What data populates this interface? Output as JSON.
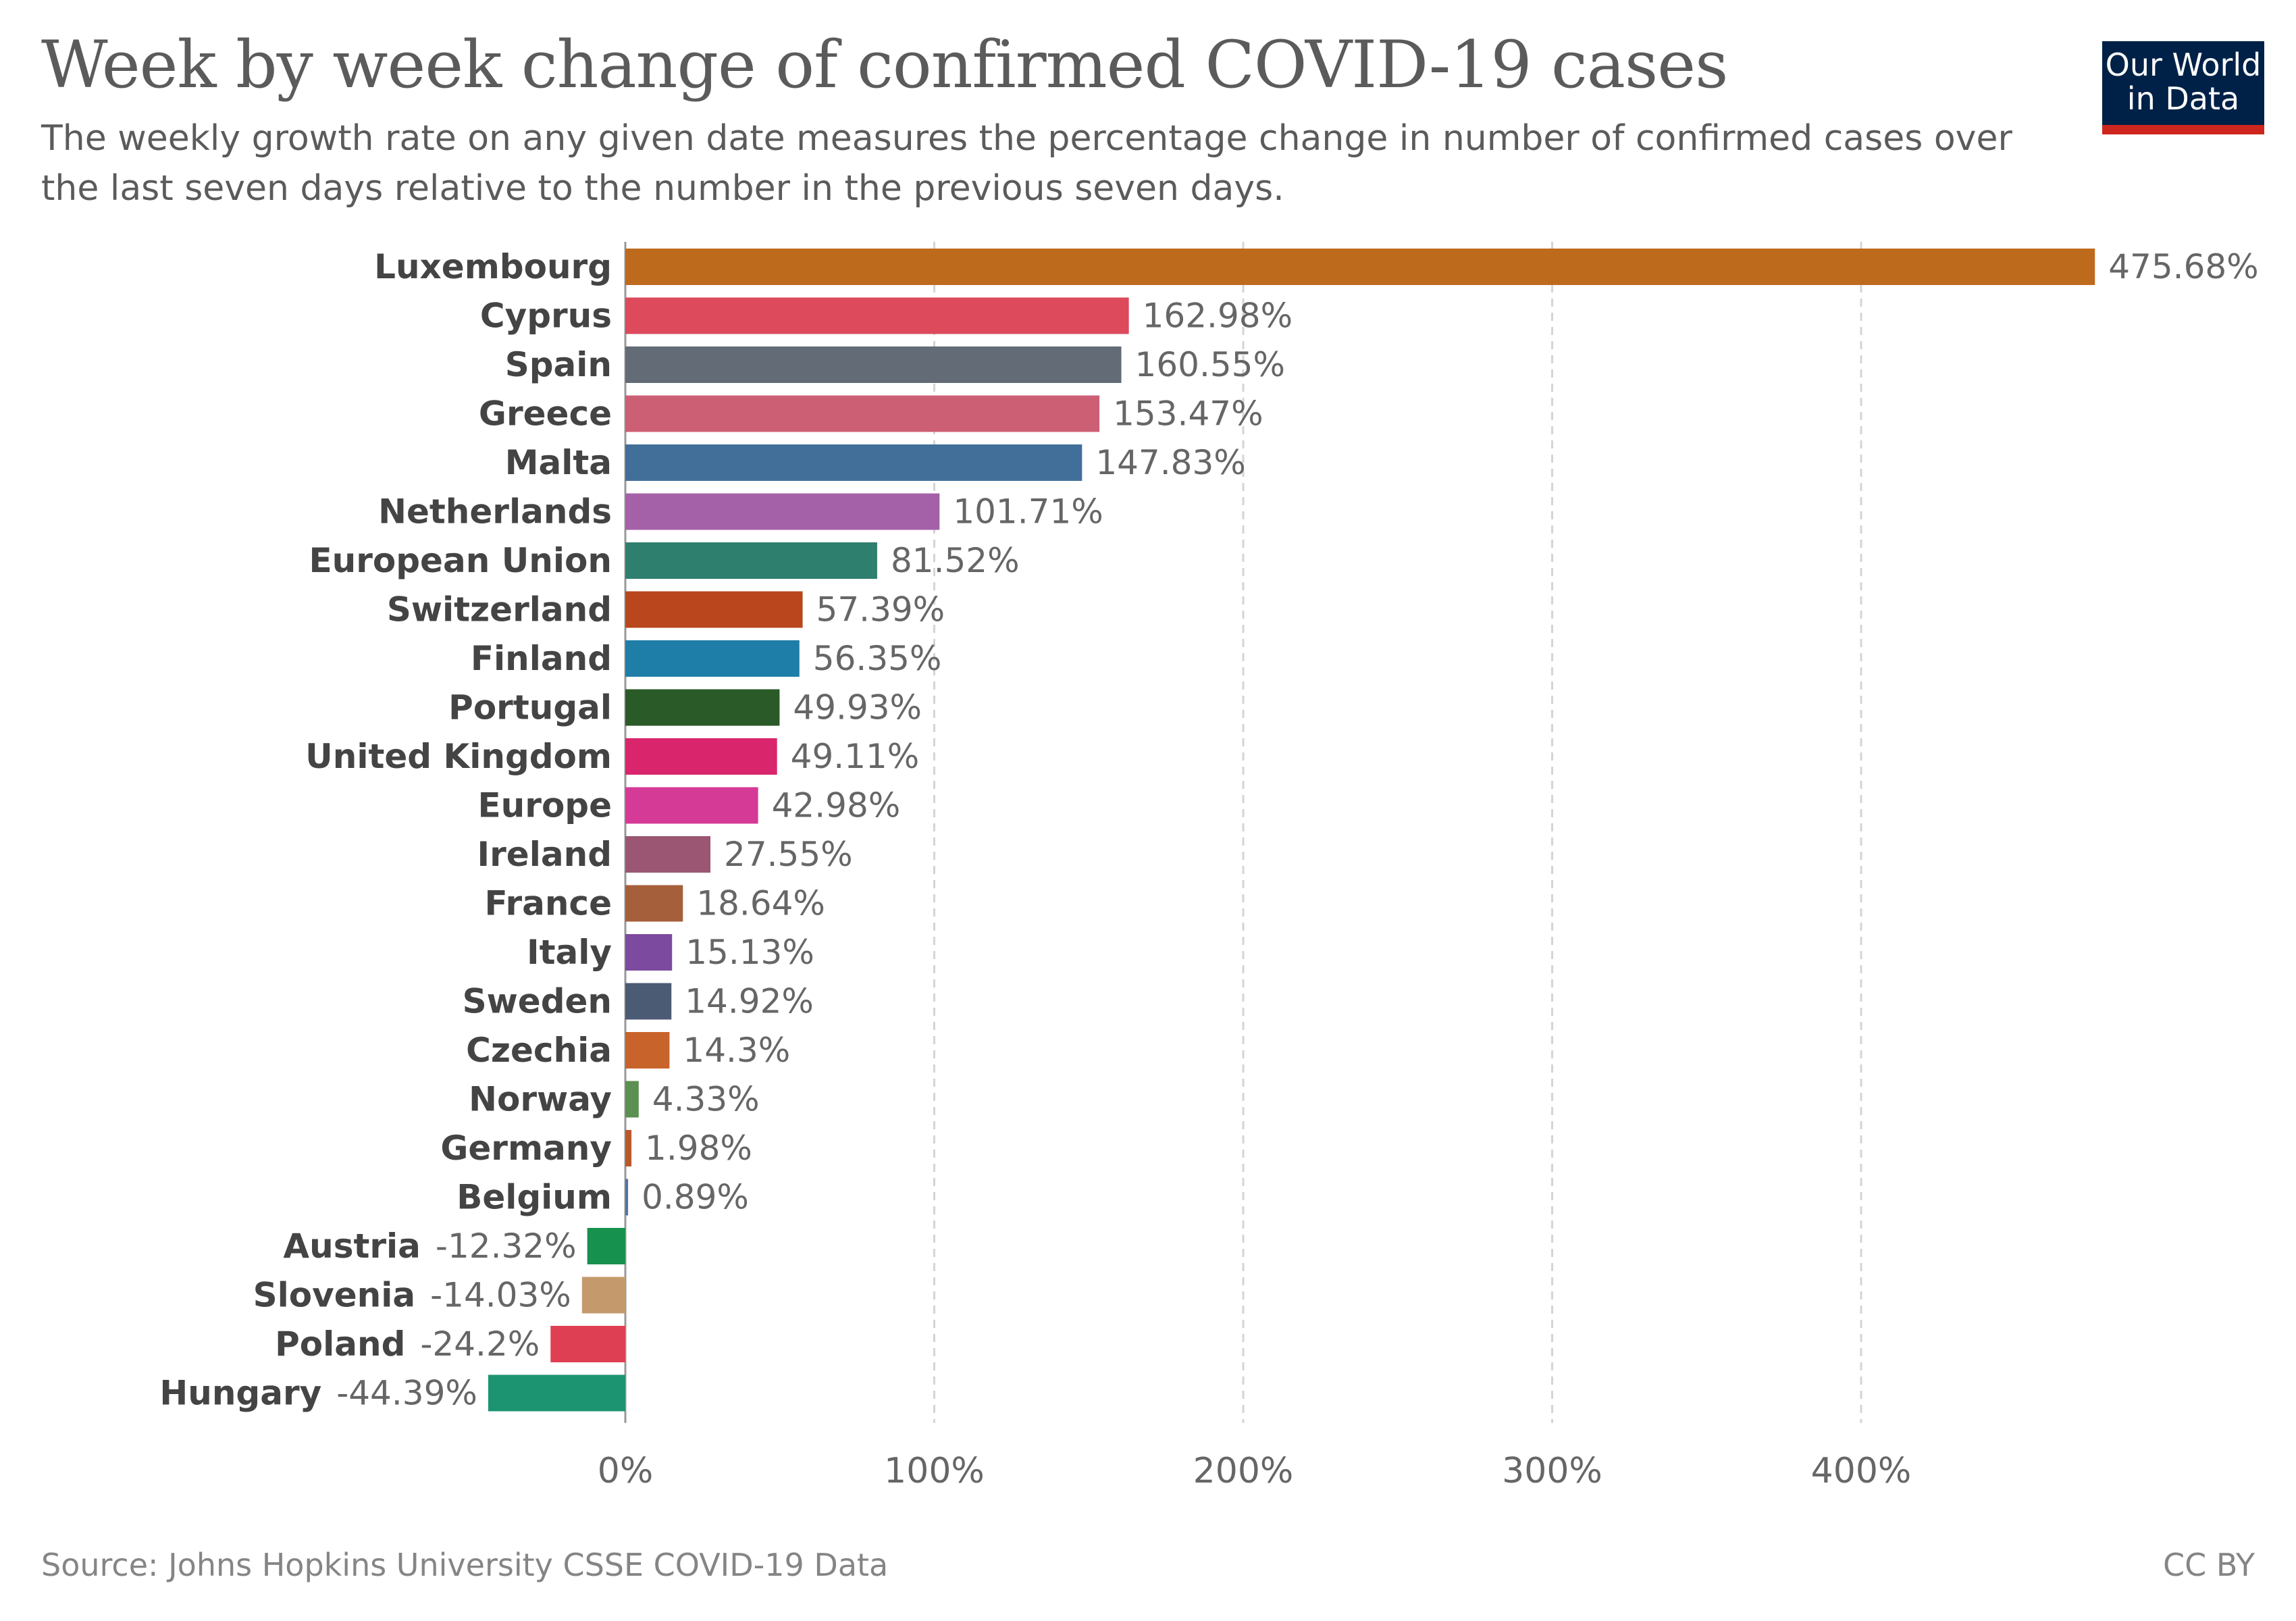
{
  "header": {
    "title": "Week by week change of confirmed COVID-19 cases",
    "subtitle": "The weekly growth rate on any given date measures the percentage change in number of confirmed cases over the last seven days relative to the number in the previous seven days."
  },
  "logo": {
    "line1": "Our World",
    "line2": "in Data",
    "bg_color": "#002147",
    "accent_color": "#ce261e"
  },
  "footer": {
    "source": "Source: Johns Hopkins University CSSE COVID-19 Data",
    "license": "CC BY"
  },
  "chart_data": {
    "type": "bar",
    "orientation": "horizontal",
    "categories": [
      "Luxembourg",
      "Cyprus",
      "Spain",
      "Greece",
      "Malta",
      "Netherlands",
      "European Union",
      "Switzerland",
      "Finland",
      "Portugal",
      "United Kingdom",
      "Europe",
      "Ireland",
      "France",
      "Italy",
      "Sweden",
      "Czechia",
      "Norway",
      "Germany",
      "Belgium",
      "Austria",
      "Slovenia",
      "Poland",
      "Hungary"
    ],
    "values": [
      475.68,
      162.98,
      160.55,
      153.47,
      147.83,
      101.71,
      81.52,
      57.39,
      56.35,
      49.93,
      49.11,
      42.98,
      27.55,
      18.64,
      15.13,
      14.92,
      14.3,
      4.33,
      1.98,
      0.89,
      -12.32,
      -14.03,
      -24.2,
      -44.39
    ],
    "value_labels": [
      "475.68%",
      "162.98%",
      "160.55%",
      "153.47%",
      "147.83%",
      "101.71%",
      "81.52%",
      "57.39%",
      "56.35%",
      "49.93%",
      "49.11%",
      "42.98%",
      "27.55%",
      "18.64%",
      "15.13%",
      "14.92%",
      "14.3%",
      "4.33%",
      "1.98%",
      "0.89%",
      "-12.32%",
      "-14.03%",
      "-24.2%",
      "-44.39%"
    ],
    "colors": [
      "#be6a1d",
      "#dc4a5c",
      "#626b76",
      "#cc5f74",
      "#426f9a",
      "#a561a8",
      "#2f7f6e",
      "#b9461c",
      "#1f7ea8",
      "#2a5a27",
      "#d9256c",
      "#d53a97",
      "#9a5672",
      "#a65f3b",
      "#7c4a9f",
      "#4c5b74",
      "#c8632b",
      "#5c8f52",
      "#b95a2c",
      "#5473a3",
      "#17914e",
      "#c49a6c",
      "#df3f52",
      "#1c9472"
    ],
    "xlim": [
      -50,
      490
    ],
    "xticks": [
      0,
      100,
      200,
      300,
      400
    ],
    "xtick_labels": [
      "0%",
      "100%",
      "200%",
      "300%",
      "400%"
    ],
    "grid": true,
    "legend": "none"
  }
}
